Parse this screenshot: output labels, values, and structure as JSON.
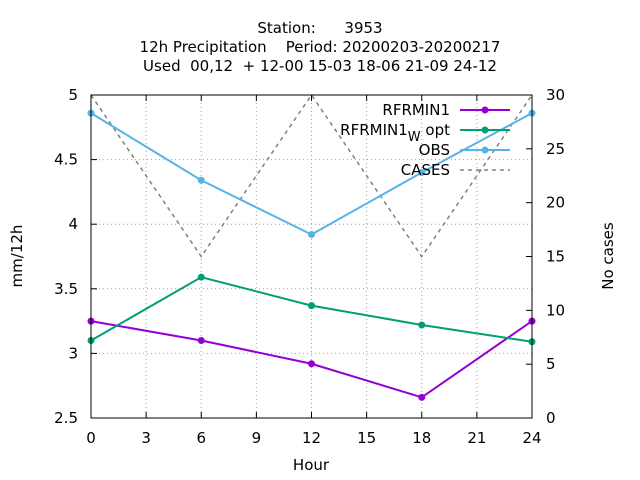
{
  "chart_data": {
    "type": "line",
    "title": [
      "Station:      3953",
      "12h Precipitation    Period: 20200203-20200217",
      "Used  00,12  + 12-00 15-03 18-06 21-09 24-12"
    ],
    "xlabel": "Hour",
    "ylabel": "mm/12h",
    "y2label": "No cases",
    "xlim": [
      0,
      24
    ],
    "ylim": [
      2.5,
      5
    ],
    "y2lim": [
      0,
      30
    ],
    "xticks": [
      "0",
      "3",
      "6",
      "9",
      "12",
      "15",
      "18",
      "21",
      "24"
    ],
    "yticks": [
      "2.5",
      "3",
      "3.5",
      "4",
      "4.5",
      "5"
    ],
    "y2ticks": [
      "0",
      "5",
      "10",
      "15",
      "20",
      "25",
      "30"
    ],
    "grid": true,
    "legend_position": "top-right",
    "series": [
      {
        "name": "RFRMIN1",
        "name_sub": "",
        "name_suffix": "",
        "color": "#9400d3",
        "axis": "y1",
        "style": "solid-points",
        "x": [
          0,
          6,
          12,
          18,
          24
        ],
        "y": [
          3.25,
          3.1,
          2.92,
          2.66,
          3.25
        ]
      },
      {
        "name": "RFRMIN1",
        "name_sub": "W",
        "name_suffix": " opt",
        "color": "#009e73",
        "axis": "y1",
        "style": "solid-points",
        "x": [
          0,
          6,
          12,
          18,
          24
        ],
        "y": [
          3.1,
          3.59,
          3.37,
          3.22,
          3.09
        ]
      },
      {
        "name": "OBS",
        "name_sub": "",
        "name_suffix": "",
        "color": "#56b4e9",
        "axis": "y1",
        "style": "solid-points",
        "x": [
          0,
          6,
          12,
          18,
          24
        ],
        "y": [
          4.86,
          4.34,
          3.92,
          4.4,
          4.86
        ]
      },
      {
        "name": "CASES",
        "name_sub": "",
        "name_suffix": "",
        "color": "#808080",
        "axis": "y2",
        "style": "dashed",
        "x": [
          0,
          6,
          12,
          18,
          24
        ],
        "y": [
          30,
          15,
          30,
          15,
          30
        ]
      }
    ]
  }
}
